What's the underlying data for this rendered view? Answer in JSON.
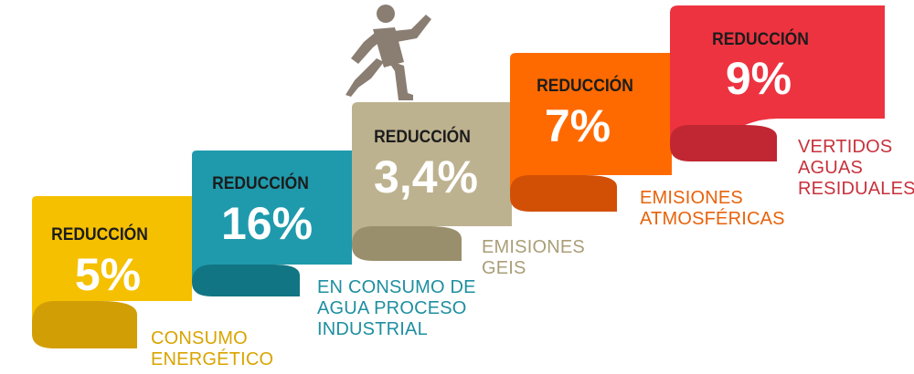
{
  "steps": [
    {
      "title": "REDUCCIÓN",
      "value": "5%",
      "caption": "CONSUMO\nENERGÉTICO",
      "color": "#f5c000",
      "shadow": "#d29e05",
      "caption_color": "#d9a400"
    },
    {
      "title": "REDUCCIÓN",
      "value": "16%",
      "caption": "EN CONSUMO DE\nAGUA PROCESO\nINDUSTRIAL",
      "color": "#1f9aac",
      "shadow": "#127584",
      "caption_color": "#1e8fa0"
    },
    {
      "title": "REDUCCIÓN",
      "value": "3,4%",
      "caption": "EMISIONES\nGEIS",
      "color": "#bdb28f",
      "shadow": "#9a8f6d",
      "caption_color": "#aa9e78"
    },
    {
      "title": "REDUCCIÓN",
      "value": "7%",
      "caption": "EMISIONES\nATMOSFÉRICAS",
      "color": "#ff6a00",
      "shadow": "#d24f06",
      "caption_color": "#e8620a"
    },
    {
      "title": "REDUCCIÓN",
      "value": "9%",
      "caption": "VERTIDOS\nAGUAS\nRESIDUALES",
      "color": "#ee3340",
      "shadow": "#c02733",
      "caption_color": "#c8313c"
    }
  ],
  "figure_icon": "running-person-icon",
  "figure_color": "#8a7d72"
}
